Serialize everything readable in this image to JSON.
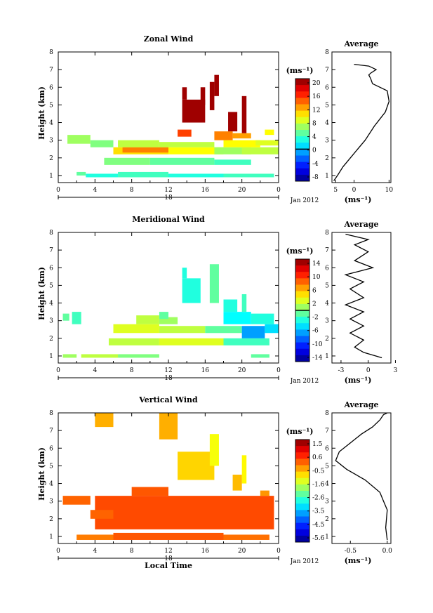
{
  "chart_data": [
    {
      "type": "heatmap",
      "title": "Zonal Wind",
      "ylabel": "Height (km)",
      "xlabel": "",
      "xticks": [
        "0",
        "4",
        "8",
        "12",
        "16",
        "20",
        "0"
      ],
      "xlim": [
        0,
        24
      ],
      "yticks": [
        "1",
        "2",
        "3",
        "4",
        "5",
        "6",
        "7",
        "8"
      ],
      "ylim": [
        0.6,
        8.0
      ],
      "day_label": "18",
      "date_label": "Jan 2012",
      "colorbar": {
        "unit": "(ms⁻¹)",
        "ticks": [
          "20",
          "16",
          "12",
          "8",
          "4",
          "0",
          "-4",
          "-8"
        ],
        "range": [
          -10,
          22
        ],
        "marker": 0
      },
      "cells": [
        {
          "t": [
            2.0,
            3.0
          ],
          "h": [
            1.0,
            1.2
          ],
          "v": 5
        },
        {
          "t": [
            3.0,
            6.5
          ],
          "h": [
            0.9,
            1.1
          ],
          "v": 3
        },
        {
          "t": [
            6.5,
            12.0
          ],
          "h": [
            0.9,
            1.2
          ],
          "v": 4
        },
        {
          "t": [
            12.0,
            18.0
          ],
          "h": [
            0.9,
            1.1
          ],
          "v": 3
        },
        {
          "t": [
            18.0,
            23.5
          ],
          "h": [
            0.9,
            1.1
          ],
          "v": 4
        },
        {
          "t": [
            5.0,
            10.0
          ],
          "h": [
            1.6,
            2.0
          ],
          "v": 6
        },
        {
          "t": [
            10.0,
            17.0
          ],
          "h": [
            1.6,
            2.0
          ],
          "v": 5
        },
        {
          "t": [
            17.0,
            21.0
          ],
          "h": [
            1.6,
            1.9
          ],
          "v": 4
        },
        {
          "t": [
            6.0,
            12.0
          ],
          "h": [
            2.2,
            2.6
          ],
          "v": 11
        },
        {
          "t": [
            7.0,
            12.0
          ],
          "h": [
            2.3,
            2.6
          ],
          "v": 14
        },
        {
          "t": [
            12.0,
            18.0
          ],
          "h": [
            2.2,
            2.6
          ],
          "v": 10
        },
        {
          "t": [
            6.5,
            11.0
          ],
          "h": [
            2.6,
            3.0
          ],
          "v": 8
        },
        {
          "t": [
            11.0,
            17.0
          ],
          "h": [
            2.6,
            2.9
          ],
          "v": 8
        },
        {
          "t": [
            17.0,
            21.0
          ],
          "h": [
            2.2,
            2.6
          ],
          "v": 7
        },
        {
          "t": [
            20.0,
            24.0
          ],
          "h": [
            2.2,
            2.6
          ],
          "v": 8
        },
        {
          "t": [
            18.0,
            22.0
          ],
          "h": [
            2.6,
            3.0
          ],
          "v": 10
        },
        {
          "t": [
            21.5,
            24.0
          ],
          "h": [
            2.7,
            3.0
          ],
          "v": 9
        },
        {
          "t": [
            1.0,
            3.5
          ],
          "h": [
            2.8,
            3.3
          ],
          "v": 7
        },
        {
          "t": [
            3.5,
            6.0
          ],
          "h": [
            2.6,
            3.0
          ],
          "v": 6
        },
        {
          "t": [
            17.0,
            19.0
          ],
          "h": [
            3.0,
            3.5
          ],
          "v": 14
        },
        {
          "t": [
            19.0,
            21.0
          ],
          "h": [
            3.1,
            3.4
          ],
          "v": 13
        },
        {
          "t": [
            22.5,
            23.5
          ],
          "h": [
            3.3,
            3.6
          ],
          "v": 10
        },
        {
          "t": [
            13.0,
            14.5
          ],
          "h": [
            3.2,
            3.6
          ],
          "v": 16
        },
        {
          "t": [
            13.5,
            16.0
          ],
          "h": [
            4.0,
            5.3
          ],
          "v": 21
        },
        {
          "t": [
            13.5,
            14.0
          ],
          "h": [
            5.3,
            6.0
          ],
          "v": 21
        },
        {
          "t": [
            15.5,
            16.0
          ],
          "h": [
            5.0,
            6.0
          ],
          "v": 21
        },
        {
          "t": [
            16.5,
            17.0
          ],
          "h": [
            4.7,
            6.3
          ],
          "v": 21
        },
        {
          "t": [
            17.0,
            17.5
          ],
          "h": [
            5.5,
            6.7
          ],
          "v": 21
        },
        {
          "t": [
            18.5,
            19.5
          ],
          "h": [
            3.5,
            4.6
          ],
          "v": 21
        },
        {
          "t": [
            20.0,
            20.5
          ],
          "h": [
            3.4,
            5.5
          ],
          "v": 21
        }
      ],
      "average": {
        "title": "Average",
        "xticks": [
          "5",
          "0",
          "10"
        ],
        "xlim": [
          -6,
          10
        ],
        "xlabel": "(ms⁻¹)",
        "x": [
          -5.5,
          -4.5,
          -3.0,
          -1.0,
          1.0,
          3.0,
          5.5,
          8.5,
          9.5,
          9.0,
          5.0,
          4.5,
          4.0,
          4.5,
          6.0,
          4.0,
          0.0
        ],
        "h": [
          0.7,
          1.0,
          1.5,
          2.0,
          2.5,
          3.0,
          3.8,
          4.6,
          5.2,
          5.8,
          6.2,
          6.5,
          6.7,
          6.8,
          7.0,
          7.2,
          7.3
        ]
      }
    },
    {
      "type": "heatmap",
      "title": "Meridional Wind",
      "ylabel": "Height (km)",
      "xlabel": "",
      "xticks": [
        "0",
        "4",
        "8",
        "12",
        "16",
        "20",
        "0"
      ],
      "xlim": [
        0,
        24
      ],
      "yticks": [
        "1",
        "2",
        "3",
        "4",
        "5",
        "6",
        "7",
        "8"
      ],
      "ylim": [
        0.6,
        8.0
      ],
      "day_label": "18",
      "date_label": "Jan 2012",
      "colorbar": {
        "unit": "(ms⁻¹)",
        "ticks": [
          "14",
          "10",
          "6",
          "2",
          "-2",
          "-6",
          "-10",
          "-14"
        ],
        "range": [
          -16,
          16
        ],
        "marker": 0
      },
      "cells": [
        {
          "t": [
            0.5,
            2.0
          ],
          "h": [
            0.9,
            1.1
          ],
          "v": 1
        },
        {
          "t": [
            2.5,
            6.5
          ],
          "h": [
            0.9,
            1.1
          ],
          "v": 2
        },
        {
          "t": [
            6.5,
            11.0
          ],
          "h": [
            0.9,
            1.1
          ],
          "v": 0
        },
        {
          "t": [
            21.0,
            23.0
          ],
          "h": [
            0.9,
            1.1
          ],
          "v": -1
        },
        {
          "t": [
            5.5,
            11.0
          ],
          "h": [
            1.6,
            2.0
          ],
          "v": 2
        },
        {
          "t": [
            11.0,
            18.0
          ],
          "h": [
            1.6,
            2.0
          ],
          "v": 3
        },
        {
          "t": [
            18.0,
            23.0
          ],
          "h": [
            1.6,
            2.0
          ],
          "v": -2
        },
        {
          "t": [
            6.0,
            11.0
          ],
          "h": [
            2.3,
            2.8
          ],
          "v": 3
        },
        {
          "t": [
            11.0,
            16.0
          ],
          "h": [
            2.3,
            2.7
          ],
          "v": 2
        },
        {
          "t": [
            16.0,
            20.0
          ],
          "h": [
            2.3,
            2.7
          ],
          "v": -1
        },
        {
          "t": [
            20.0,
            22.5
          ],
          "h": [
            2.0,
            2.7
          ],
          "v": -7
        },
        {
          "t": [
            22.5,
            24.0
          ],
          "h": [
            2.3,
            2.8
          ],
          "v": -5
        },
        {
          "t": [
            0.5,
            1.2
          ],
          "h": [
            3.0,
            3.4
          ],
          "v": -1
        },
        {
          "t": [
            1.5,
            2.5
          ],
          "h": [
            2.8,
            3.5
          ],
          "v": -2
        },
        {
          "t": [
            8.5,
            11.0
          ],
          "h": [
            2.8,
            3.3
          ],
          "v": 2
        },
        {
          "t": [
            11.0,
            13.0
          ],
          "h": [
            2.8,
            3.2
          ],
          "v": 1
        },
        {
          "t": [
            18.0,
            21.0
          ],
          "h": [
            2.8,
            3.5
          ],
          "v": -4
        },
        {
          "t": [
            21.0,
            23.5
          ],
          "h": [
            2.8,
            3.4
          ],
          "v": -3
        },
        {
          "t": [
            18.0,
            19.5
          ],
          "h": [
            3.5,
            4.2
          ],
          "v": -3
        },
        {
          "t": [
            20.0,
            20.5
          ],
          "h": [
            3.5,
            4.5
          ],
          "v": -2
        },
        {
          "t": [
            13.5,
            15.5
          ],
          "h": [
            4.0,
            5.4
          ],
          "v": -3
        },
        {
          "t": [
            13.5,
            14.0
          ],
          "h": [
            5.4,
            6.0
          ],
          "v": -3
        },
        {
          "t": [
            16.5,
            17.5
          ],
          "h": [
            4.0,
            6.2
          ],
          "v": -1
        },
        {
          "t": [
            11.0,
            12.0
          ],
          "h": [
            3.1,
            3.5
          ],
          "v": -1
        }
      ],
      "average": {
        "title": "Average",
        "xticks": [
          "-3",
          "0",
          "3"
        ],
        "xlim": [
          -4,
          2.5
        ],
        "xlabel": "(ms⁻¹)",
        "x": [
          1.5,
          -0.5,
          -1.5,
          -0.5,
          -2.0,
          -0.5,
          -2.0,
          -0.5,
          -2.5,
          -0.5,
          -2.0,
          -0.5,
          -2.5,
          0.5,
          -1.5,
          0.0,
          -1.5,
          0.0,
          -2.5
        ],
        "h": [
          0.9,
          1.2,
          1.5,
          1.9,
          2.3,
          2.7,
          3.1,
          3.5,
          3.9,
          4.3,
          4.8,
          5.2,
          5.6,
          6.0,
          6.4,
          6.9,
          7.3,
          7.6,
          7.9
        ]
      }
    },
    {
      "type": "heatmap",
      "title": "Vertical Wind",
      "ylabel": "Height (km)",
      "xlabel": "Local Time",
      "xticks": [
        "0",
        "4",
        "8",
        "12",
        "16",
        "20",
        "0"
      ],
      "xlim": [
        0,
        24
      ],
      "yticks": [
        "1",
        "2",
        "3",
        "4",
        "5",
        "6",
        "7",
        "8"
      ],
      "ylim": [
        0.6,
        8.0
      ],
      "day_label": "18",
      "date_label": "Jan 2012",
      "colorbar": {
        "unit": "(ms⁻¹)",
        "ticks": [
          "1.5",
          "0.6",
          "-0.5",
          "-1.6",
          "-2.6",
          "-3.5",
          "-4.5",
          "-5.6"
        ],
        "range": [
          -6.1,
          2.0
        ],
        "marker": null
      },
      "cells": [
        {
          "t": [
            2.0,
            6.0
          ],
          "h": [
            0.8,
            1.1
          ],
          "v": 0.0
        },
        {
          "t": [
            6.0,
            18.0
          ],
          "h": [
            0.8,
            1.2
          ],
          "v": 0.3
        },
        {
          "t": [
            18.0,
            23.0
          ],
          "h": [
            0.8,
            1.1
          ],
          "v": 0.1
        },
        {
          "t": [
            4.0,
            23.5
          ],
          "h": [
            1.4,
            3.3
          ],
          "v": 0.4
        },
        {
          "t": [
            8.0,
            12.0
          ],
          "h": [
            3.3,
            3.8
          ],
          "v": 0.3
        },
        {
          "t": [
            0.5,
            3.5
          ],
          "h": [
            2.8,
            3.3
          ],
          "v": 0.2
        },
        {
          "t": [
            3.5,
            6.0
          ],
          "h": [
            2.0,
            2.5
          ],
          "v": 0.2
        },
        {
          "t": [
            4.0,
            6.0
          ],
          "h": [
            7.2,
            8.0
          ],
          "v": -0.4
        },
        {
          "t": [
            11.0,
            13.0
          ],
          "h": [
            6.5,
            8.0
          ],
          "v": -0.4
        },
        {
          "t": [
            13.0,
            17.0
          ],
          "h": [
            4.2,
            5.8
          ],
          "v": -0.7
        },
        {
          "t": [
            16.5,
            17.5
          ],
          "h": [
            5.0,
            6.8
          ],
          "v": -1.1
        },
        {
          "t": [
            20.0,
            20.5
          ],
          "h": [
            4.0,
            5.6
          ],
          "v": -1.0
        },
        {
          "t": [
            19.0,
            20.0
          ],
          "h": [
            3.6,
            4.5
          ],
          "v": -0.5
        },
        {
          "t": [
            22.0,
            23.0
          ],
          "h": [
            3.3,
            3.6
          ],
          "v": -0.2
        }
      ],
      "average": {
        "title": "Average",
        "xticks": [
          "-0.5",
          "0.0"
        ],
        "xlim": [
          -0.75,
          0.05
        ],
        "xlabel": "(ms⁻¹)",
        "x": [
          0.0,
          -0.02,
          0.0,
          -0.05,
          -0.1,
          -0.3,
          -0.55,
          -0.7,
          -0.65,
          -0.5,
          -0.35,
          -0.2,
          -0.1,
          -0.05,
          0.0
        ],
        "h": [
          0.8,
          1.5,
          2.5,
          3.0,
          3.5,
          4.2,
          4.8,
          5.3,
          5.8,
          6.3,
          6.8,
          7.2,
          7.6,
          7.9,
          8.0
        ]
      }
    }
  ]
}
